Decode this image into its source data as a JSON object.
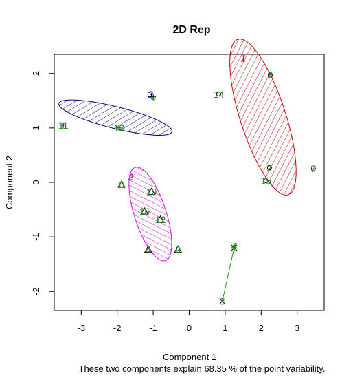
{
  "chart_data": {
    "type": "scatter",
    "title": "2D Rep",
    "xlabel": "Component 1",
    "ylabel": "Component 2",
    "subtitle": "These two components explain 68.35 % of the point variability.",
    "xlim": [
      -3.75,
      3.75
    ],
    "ylim": [
      -2.35,
      2.35
    ],
    "xticks": [
      "-3",
      "-2",
      "-1",
      "0",
      "1",
      "2",
      "3"
    ],
    "yticks": [
      "-2",
      "-1",
      "0",
      "1",
      "2"
    ],
    "point_label_color": "#228B22",
    "clusters": [
      {
        "name": "1",
        "color": "#cc0000",
        "marker": "circle",
        "label_pos": [
          1.5,
          2.28
        ],
        "ellipse": {
          "cx": 2.05,
          "cy": 1.2,
          "rx": 0.63,
          "ry": 1.5,
          "angle": -18,
          "hatch_angle": 45
        },
        "points": [
          {
            "id": "8",
            "x": 2.25,
            "y": 1.97
          },
          {
            "id": "14",
            "x": 0.82,
            "y": 1.62
          },
          {
            "id": "2",
            "x": 2.23,
            "y": 0.27
          },
          {
            "id": "15",
            "x": 2.13,
            "y": 0.03
          },
          {
            "id": "7",
            "x": 3.45,
            "y": 0.25
          }
        ]
      },
      {
        "name": "2",
        "color": "#dd00dd",
        "marker": "triangle",
        "label_pos": [
          -1.62,
          0.1
        ],
        "ellipse": {
          "cx": -1.08,
          "cy": -0.58,
          "rx": 0.44,
          "ry": 0.9,
          "angle": -18,
          "hatch_angle": -45
        },
        "points": [
          {
            "id": "6",
            "x": -1.88,
            "y": -0.04
          },
          {
            "id": "10",
            "x": -1.05,
            "y": -0.17
          },
          {
            "id": "16",
            "x": -1.24,
            "y": -0.53
          },
          {
            "id": "12",
            "x": -0.8,
            "y": -0.68
          },
          {
            "id": "4",
            "x": -1.14,
            "y": -1.23
          },
          {
            "id": "9",
            "x": -0.31,
            "y": -1.23
          }
        ]
      },
      {
        "name": "3",
        "color": "#000080",
        "marker": "plus",
        "label_pos": [
          -1.08,
          1.62
        ],
        "ellipse": {
          "cx": -2.05,
          "cy": 1.19,
          "rx": 1.62,
          "ry": 0.2,
          "angle": 14,
          "hatch_angle": 45
        },
        "points": [
          {
            "id": "5",
            "x": -1.0,
            "y": 1.57
          },
          {
            "id": "11",
            "x": -3.5,
            "y": 1.05
          },
          {
            "id": "13",
            "x": -1.95,
            "y": 1.0
          }
        ]
      },
      {
        "name": "4",
        "color": "#228B22",
        "marker": "cross",
        "label_pos": [
          1.25,
          -1.17
        ],
        "ellipse": null,
        "segment": [
          [
            1.25,
            -1.2
          ],
          [
            0.92,
            -2.18
          ]
        ],
        "points": [
          {
            "id": "1",
            "x": 1.25,
            "y": -1.2
          },
          {
            "id": "3",
            "x": 0.92,
            "y": -2.18
          }
        ]
      }
    ]
  }
}
